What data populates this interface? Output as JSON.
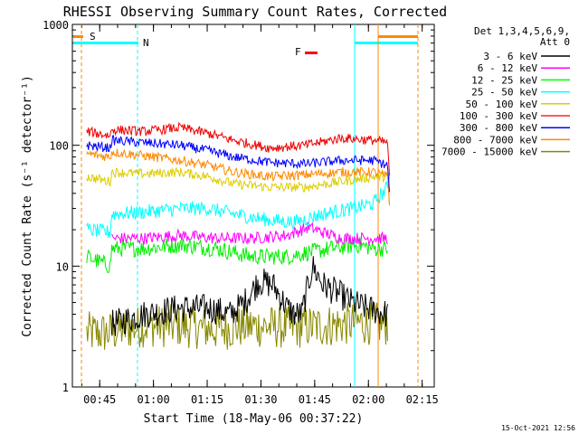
{
  "chart_data": {
    "type": "line",
    "title": "RHESSI Observing Summary Count Rates, Corrected",
    "xlabel": "Start Time (18-May-06 00:37:22)",
    "ylabel": "Corrected Count Rate (s⁻¹ detector⁻¹)",
    "yscale": "log",
    "ylim": [
      1,
      1000
    ],
    "x_range_minutes": [
      0,
      101
    ],
    "x_ticks": [
      {
        "minute": 7.63,
        "label": "00:45"
      },
      {
        "minute": 22.63,
        "label": "01:00"
      },
      {
        "minute": 37.63,
        "label": "01:15"
      },
      {
        "minute": 52.63,
        "label": "01:30"
      },
      {
        "minute": 67.63,
        "label": "01:45"
      },
      {
        "minute": 82.63,
        "label": "02:00"
      },
      {
        "minute": 97.63,
        "label": "02:15"
      }
    ],
    "y_ticks": [
      {
        "value": 1,
        "label": "1"
      },
      {
        "value": 10,
        "label": "10"
      },
      {
        "value": 100,
        "label": "100"
      },
      {
        "value": 1000,
        "label": "1000"
      }
    ],
    "legend": {
      "header": [
        "Det 1,3,4,5,6,9,",
        "Att 0"
      ],
      "entries": [
        {
          "label": "3 - 6 keV",
          "color": "#000000"
        },
        {
          "label": "6 - 12 keV",
          "color": "#ff00ff"
        },
        {
          "label": "12 - 25 keV",
          "color": "#00ff00"
        },
        {
          "label": "25 - 50 keV",
          "color": "#00ffff"
        },
        {
          "label": "50 - 100 keV",
          "color": "#ddcc00"
        },
        {
          "label": "100 - 300 keV",
          "color": "#ff2222"
        },
        {
          "label": "300 - 800 keV",
          "color": "#0000ff"
        },
        {
          "label": "800 - 7000 keV",
          "color": "#ff8800"
        },
        {
          "label": "7000 - 15000 keV",
          "color": "#888800"
        }
      ]
    },
    "series": [
      {
        "name": "100 - 300 keV",
        "color": "#ee0000",
        "noise": 0.04,
        "x": [
          4,
          10.5,
          11,
          20,
          30,
          38,
          45,
          55,
          65,
          75,
          84,
          88,
          88.6
        ],
        "y": [
          130,
          120,
          135,
          130,
          140,
          125,
          110,
          95,
          100,
          115,
          110,
          105,
          45
        ]
      },
      {
        "name": "300 - 800 keV",
        "color": "#0000ff",
        "noise": 0.04,
        "x": [
          4,
          10.5,
          11,
          20,
          30,
          38,
          45,
          55,
          65,
          75,
          84,
          88,
          88.6
        ],
        "y": [
          100,
          95,
          110,
          105,
          100,
          90,
          80,
          72,
          70,
          75,
          75,
          68,
          35
        ]
      },
      {
        "name": "800 - 7000 keV",
        "color": "#ff8800",
        "noise": 0.04,
        "x": [
          4,
          10.5,
          11,
          20,
          30,
          38,
          45,
          55,
          65,
          75,
          84,
          88,
          88.6
        ],
        "y": [
          85,
          80,
          88,
          82,
          75,
          68,
          60,
          55,
          57,
          60,
          60,
          55,
          30
        ]
      },
      {
        "name": "50 - 100 keV",
        "color": "#ddcc00",
        "noise": 0.04,
        "x": [
          4,
          10.5,
          11,
          20,
          30,
          38,
          45,
          55,
          65,
          75,
          84,
          88,
          88.6
        ],
        "y": [
          55,
          50,
          60,
          58,
          60,
          55,
          48,
          45,
          45,
          50,
          55,
          55,
          28
        ]
      },
      {
        "name": "25 - 50 keV",
        "color": "#00ffff",
        "noise": 0.06,
        "x": [
          4,
          10.5,
          11,
          20,
          30,
          38,
          45,
          55,
          62,
          70,
          78,
          84,
          88,
          88.6
        ],
        "y": [
          20,
          19,
          27,
          28,
          30,
          30,
          27,
          24,
          23,
          27,
          30,
          33,
          45,
          60
        ]
      },
      {
        "name": "6 - 12 keV",
        "color": "#ff00ff",
        "noise": 0.05,
        "x": [
          11,
          20,
          30,
          40,
          50,
          60,
          66,
          70,
          75,
          80,
          84,
          88
        ],
        "y": [
          17,
          17,
          18,
          17,
          17,
          18,
          21,
          19,
          17,
          17,
          17,
          17
        ]
      },
      {
        "name": "12 - 25 keV",
        "color": "#00ee00",
        "noise": 0.07,
        "x": [
          4,
          10.5,
          11,
          20,
          30,
          40,
          50,
          60,
          66,
          72,
          80,
          84,
          88
        ],
        "y": [
          12,
          10,
          14,
          14,
          15,
          14,
          12,
          12,
          13,
          14,
          15,
          14,
          14
        ]
      },
      {
        "name": "3 - 6 keV",
        "color": "#000000",
        "noise": 0.12,
        "x": [
          11,
          20,
          30,
          38,
          44,
          48,
          52,
          56,
          60,
          62,
          64,
          67,
          70,
          74,
          78,
          82,
          88
        ],
        "y": [
          3.3,
          4,
          4.5,
          4.5,
          4,
          5,
          7.5,
          7,
          4.5,
          4,
          4,
          10,
          7,
          6,
          5,
          4.5,
          4
        ]
      },
      {
        "name": "7000 - 15000 keV",
        "color": "#888800",
        "noise": 0.18,
        "x": [
          4,
          10,
          14,
          20,
          30,
          40,
          50,
          60,
          70,
          80,
          88
        ],
        "y": [
          2.8,
          2.8,
          3.0,
          3.2,
          3.2,
          3.0,
          3.2,
          3.1,
          3.2,
          3.4,
          3.3
        ]
      }
    ],
    "annotations": {
      "left_bar_label": "S",
      "left_bar_color": "#ff8800",
      "night_label": "N",
      "night_color": "#00ffff",
      "flare_label": "F",
      "flare_color": "#ff0000"
    },
    "timestamp": "15-Oct-2021 12:56"
  }
}
